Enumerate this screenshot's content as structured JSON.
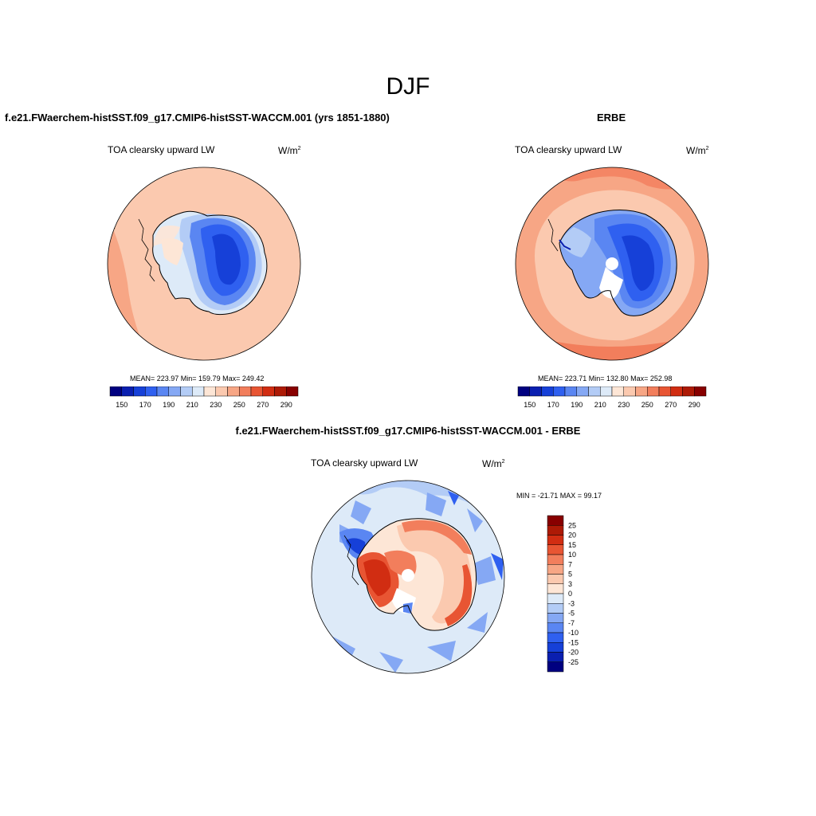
{
  "title": "DJF",
  "panels": [
    {
      "id": "model",
      "title": "f.e21.FWaerchem-histSST.f09_g17.CMIP6-histSST-WACCM.001 (yrs 1851-1880)",
      "subtitle": "TOA clearsky upward LW",
      "units": "W/m",
      "units_sup": "2",
      "stats": "MEAN= 223.97  Min= 159.79  Max= 249.42"
    },
    {
      "id": "obs",
      "title": "ERBE",
      "subtitle": "TOA clearsky upward LW",
      "units": "W/m",
      "units_sup": "2",
      "stats": "MEAN= 223.71  Min= 132.80  Max= 252.98"
    },
    {
      "id": "diff",
      "title": "f.e21.FWaerchem-histSST.f09_g17.CMIP6-histSST-WACCM.001 - ERBE",
      "subtitle": "TOA clearsky upward LW",
      "units": "W/m",
      "units_sup": "2",
      "stats": "MIN = -21.71 MAX =  99.17"
    }
  ],
  "colorbar_abs": {
    "colors": [
      "#000080",
      "#0a1fb0",
      "#1640d8",
      "#2f60f0",
      "#5a86f2",
      "#85a8f4",
      "#b3ccf6",
      "#ddeaf8",
      "#fde6d6",
      "#fbc9af",
      "#f7a685",
      "#f27e5c",
      "#e85533",
      "#d12d12",
      "#ad1a06",
      "#880000"
    ],
    "tick_labels": [
      "150",
      "170",
      "190",
      "210",
      "230",
      "250",
      "270",
      "290"
    ]
  },
  "colorbar_diff": {
    "colors": [
      "#880000",
      "#ad1a06",
      "#d12d12",
      "#e85533",
      "#f27e5c",
      "#f7a685",
      "#fbc9af",
      "#fde6d6",
      "#ddeaf8",
      "#b3ccf6",
      "#85a8f4",
      "#5a86f2",
      "#2f60f0",
      "#1640d8",
      "#0a1fb0",
      "#000080"
    ],
    "tick_labels": [
      "25",
      "20",
      "15",
      "10",
      "7",
      "5",
      "3",
      "0",
      "-3",
      "-5",
      "-7",
      "-10",
      "-15",
      "-20",
      "-25"
    ]
  }
}
